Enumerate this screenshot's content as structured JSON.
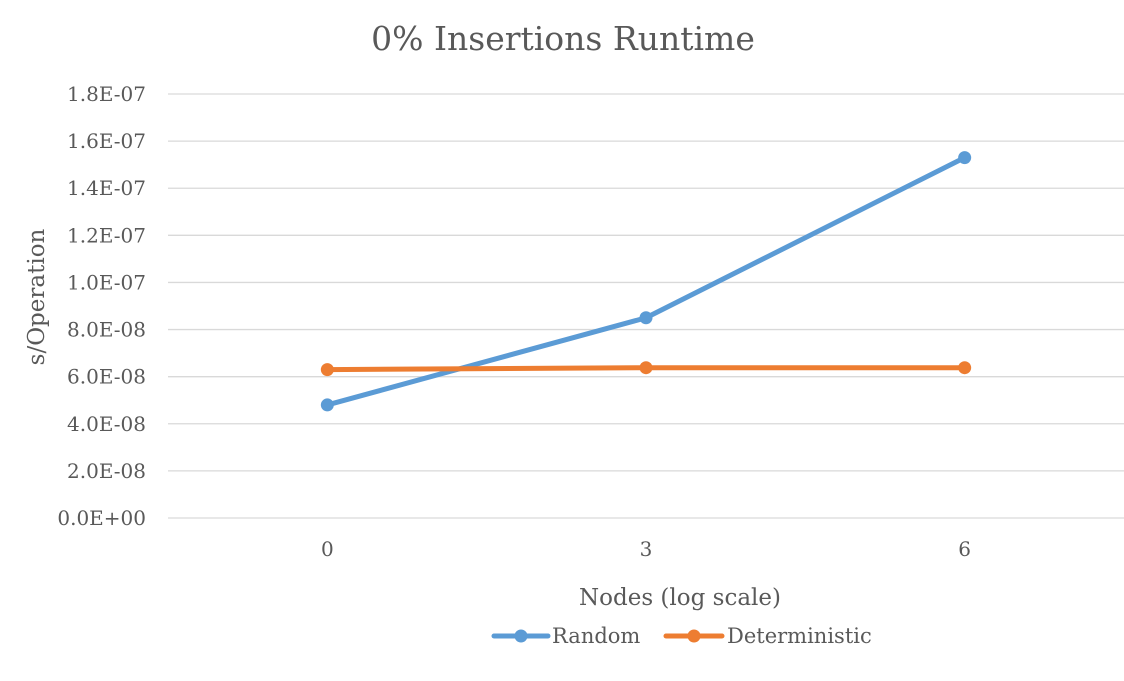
{
  "chart_data": {
    "type": "line",
    "title": "0% Insertions Runtime",
    "xlabel": "Nodes (log scale)",
    "ylabel": "s/Operation",
    "x": [
      0,
      3,
      6
    ],
    "categories": [
      "0",
      "3",
      "6"
    ],
    "ylim": [
      0,
      1.8e-07
    ],
    "yticks": [
      {
        "value": 0,
        "label": "0.0E+00"
      },
      {
        "value": 2e-08,
        "label": "2.0E-08"
      },
      {
        "value": 4e-08,
        "label": "4.0E-08"
      },
      {
        "value": 6e-08,
        "label": "6.0E-08"
      },
      {
        "value": 8e-08,
        "label": "8.0E-08"
      },
      {
        "value": 1e-07,
        "label": "1.0E-07"
      },
      {
        "value": 1.2e-07,
        "label": "1.2E-07"
      },
      {
        "value": 1.4e-07,
        "label": "1.4E-07"
      },
      {
        "value": 1.6e-07,
        "label": "1.6E-07"
      },
      {
        "value": 1.8e-07,
        "label": "1.8E-07"
      }
    ],
    "grid": true,
    "legend_position": "bottom",
    "series": [
      {
        "name": "Random",
        "color": "#5b9bd5",
        "values": [
          4.8e-08,
          8.5e-08,
          1.53e-07
        ]
      },
      {
        "name": "Deterministic",
        "color": "#ed7d31",
        "values": [
          6.3e-08,
          6.38e-08,
          6.38e-08
        ]
      }
    ]
  }
}
